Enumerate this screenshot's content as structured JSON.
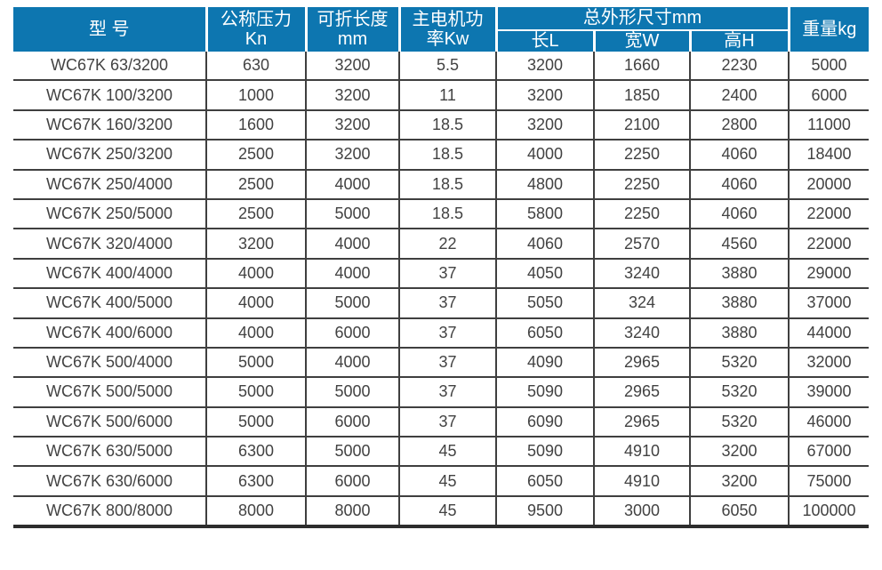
{
  "colors": {
    "header_bg": "#0d76b0",
    "header_text": "#ffffff",
    "grid_border": "#3f3f3f",
    "body_text": "#424242"
  },
  "table": {
    "header": {
      "model": "型 号",
      "pressure_line1": "公称压力",
      "pressure_line2": "Kn",
      "fold_length_line1": "可折长度",
      "fold_length_line2": "mm",
      "motor_power_line1": "主电机功",
      "motor_power_line2": "率Kw",
      "dimensions_group": "总外形尺寸mm",
      "dim_length": "长L",
      "dim_width": "宽W",
      "dim_height": "高H",
      "weight": "重量kg"
    },
    "rows": [
      [
        "WC67K 63/3200",
        "630",
        "3200",
        "5.5",
        "3200",
        "1660",
        "2230",
        "5000"
      ],
      [
        "WC67K 100/3200",
        "1000",
        "3200",
        "11",
        "3200",
        "1850",
        "2400",
        "6000"
      ],
      [
        "WC67K 160/3200",
        "1600",
        "3200",
        "18.5",
        "3200",
        "2100",
        "2800",
        "11000"
      ],
      [
        "WC67K 250/3200",
        "2500",
        "3200",
        "18.5",
        "4000",
        "2250",
        "4060",
        "18400"
      ],
      [
        "WC67K 250/4000",
        "2500",
        "4000",
        "18.5",
        "4800",
        "2250",
        "4060",
        "20000"
      ],
      [
        "WC67K 250/5000",
        "2500",
        "5000",
        "18.5",
        "5800",
        "2250",
        "4060",
        "22000"
      ],
      [
        "WC67K 320/4000",
        "3200",
        "4000",
        "22",
        "4060",
        "2570",
        "4560",
        "22000"
      ],
      [
        "WC67K 400/4000",
        "4000",
        "4000",
        "37",
        "4050",
        "3240",
        "3880",
        "29000"
      ],
      [
        "WC67K 400/5000",
        "4000",
        "5000",
        "37",
        "5050",
        "324",
        "3880",
        "37000"
      ],
      [
        "WC67K 400/6000",
        "4000",
        "6000",
        "37",
        "6050",
        "3240",
        "3880",
        "44000"
      ],
      [
        "WC67K 500/4000",
        "5000",
        "4000",
        "37",
        "4090",
        "2965",
        "5320",
        "32000"
      ],
      [
        "WC67K 500/5000",
        "5000",
        "5000",
        "37",
        "5090",
        "2965",
        "5320",
        "39000"
      ],
      [
        "WC67K 500/6000",
        "5000",
        "6000",
        "37",
        "6090",
        "2965",
        "5320",
        "46000"
      ],
      [
        "WC67K 630/5000",
        "6300",
        "5000",
        "45",
        "5090",
        "4910",
        "3200",
        "67000"
      ],
      [
        "WC67K 630/6000",
        "6300",
        "6000",
        "45",
        "6050",
        "4910",
        "3200",
        "75000"
      ],
      [
        "WC67K 800/8000",
        "8000",
        "8000",
        "45",
        "9500",
        "3000",
        "6050",
        "100000"
      ]
    ]
  }
}
